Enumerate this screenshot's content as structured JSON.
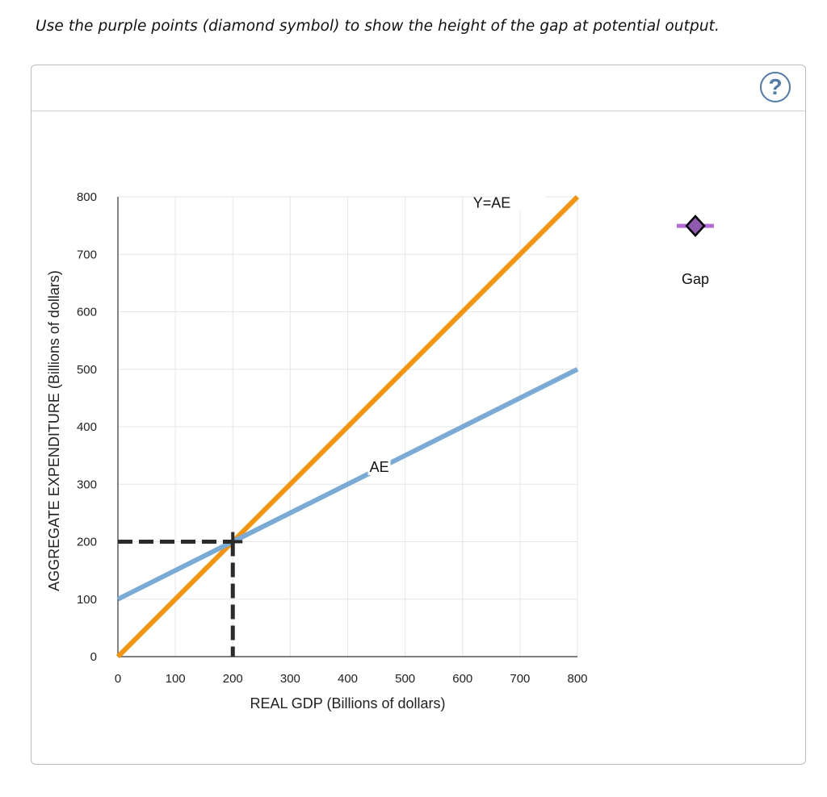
{
  "instruction": "Use the purple points (diamond symbol) to show the height of the gap at potential output.",
  "help_label": "?",
  "toolbox": {
    "gap_tool_label": "Gap",
    "gap_color": "#b36bd6",
    "icon": "diamond-icon"
  },
  "colors": {
    "y_eq_ae": "#f5940f",
    "ae": "#7aaad6",
    "guide": "#2b2b2b",
    "grid": "#e6e6e6"
  },
  "chart_data": {
    "type": "line",
    "xlabel": "REAL GDP (Billions of dollars)",
    "ylabel": "AGGREGATE EXPENDITURE (Billions of dollars)",
    "xlim": [
      0,
      800
    ],
    "ylim": [
      0,
      800
    ],
    "xticks": [
      0,
      100,
      200,
      300,
      400,
      500,
      600,
      700,
      800
    ],
    "yticks": [
      0,
      100,
      200,
      300,
      400,
      500,
      600,
      700,
      800
    ],
    "grid": true,
    "series": [
      {
        "name": "Y=AE",
        "points": [
          [
            0,
            0
          ],
          [
            800,
            800
          ]
        ],
        "label_at": [
          710,
          780
        ]
      },
      {
        "name": "AE",
        "points": [
          [
            0,
            100
          ],
          [
            800,
            500
          ]
        ],
        "label_at": [
          455,
          320
        ]
      }
    ],
    "guide_point": {
      "x": 200,
      "y": 200,
      "style": "dashed"
    }
  }
}
